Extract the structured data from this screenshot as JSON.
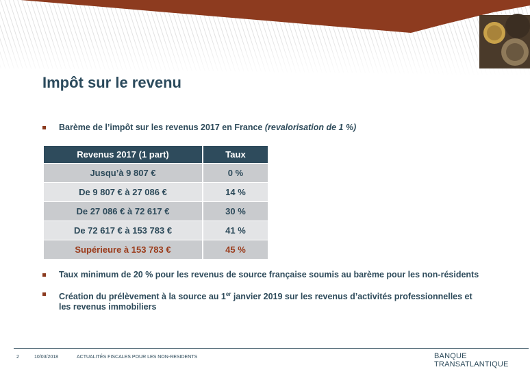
{
  "slide": {
    "title": "Impôt sur le revenu",
    "page_number": "2",
    "date": "10/03/2018",
    "footer_title": "ACTUALITÉS FISCALES POUR LES NON-RESIDENTS",
    "brand": "BANQUE TRANSATLANTIQUE"
  },
  "bullets": {
    "intro_text": "Barème de l’impôt sur les revenus 2017 en France ",
    "intro_italic": "(revalorisation de 1 %)",
    "minimum": "Taux minimum de 20 % pour les revenus de source française soumis au barème pour les non-résidents",
    "prelevement_pre": "Création du prélèvement à la source au 1",
    "prelevement_sup": "er",
    "prelevement_post": " janvier 2019 sur les revenus d’activités professionnelles et les revenus immobiliers"
  },
  "table": {
    "headers": [
      "Revenus 2017 (1 part)",
      "Taux"
    ],
    "rows": [
      [
        "Jusqu’à 9 807 €",
        "0 %"
      ],
      [
        "De 9 807 € à 27 086 €",
        "14 %"
      ],
      [
        "De 27 086 € à 72 617 €",
        "30 %"
      ],
      [
        "De 72 617 € à 153 783 €",
        "41 %"
      ],
      [
        "Supérieure à 153 783 €",
        "45 %"
      ]
    ]
  },
  "colors": {
    "title": "#2b4a5c",
    "header_bg": "#2e4b5c",
    "accent": "#9b3c1c",
    "row_dark": "#c9cbce",
    "row_light": "#e3e4e6"
  }
}
